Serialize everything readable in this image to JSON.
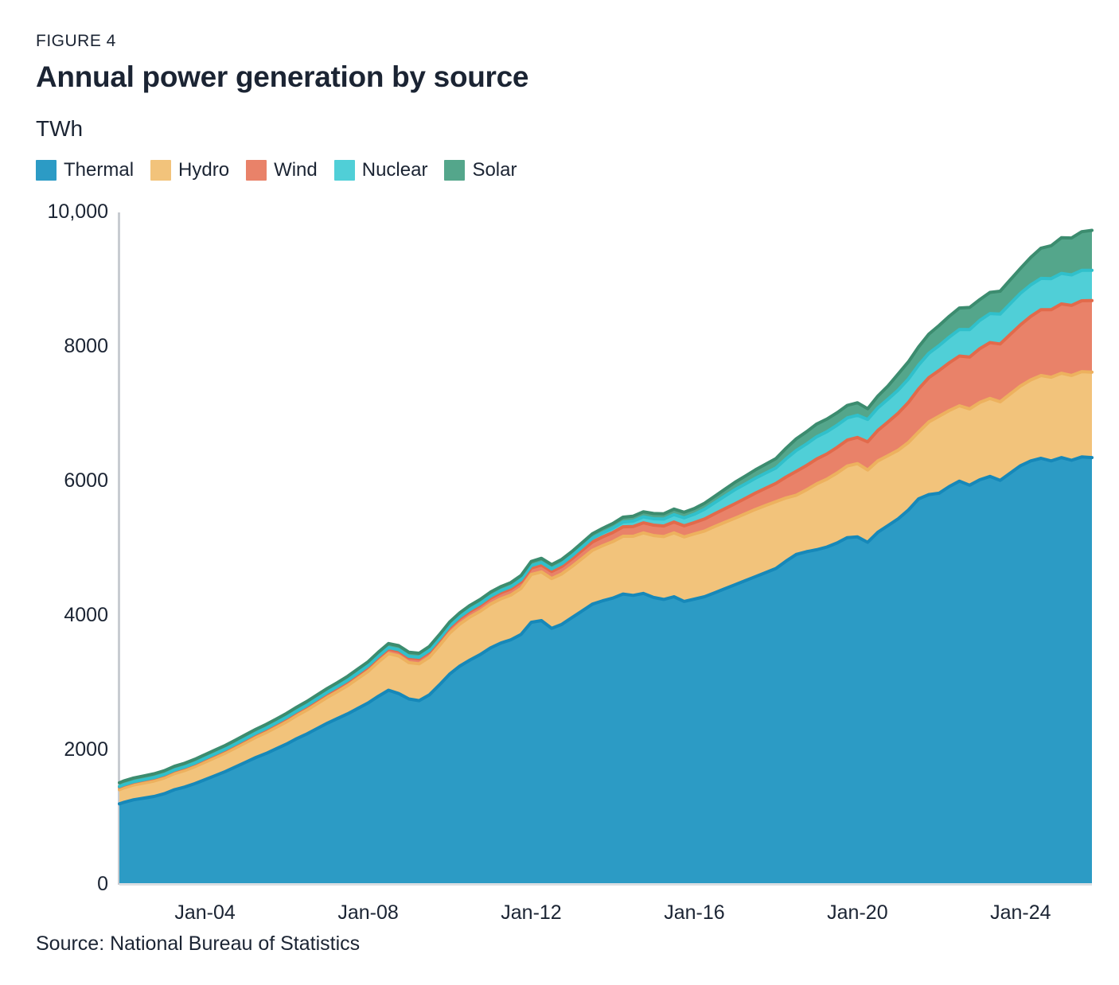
{
  "figure": {
    "label": "FIGURE 4",
    "title": "Annual power generation by source",
    "unit_label": "TWh",
    "source": "Source: National Bureau of Statistics"
  },
  "colors": {
    "text": "#1b2433",
    "y_axis_line": "#c8ccd1",
    "baseline": "#dbdee2"
  },
  "chart_data": {
    "type": "area",
    "stacked": true,
    "title": "Annual power generation by source",
    "ylabel": "TWh",
    "grid": false,
    "legend_position": "top",
    "xlim": [
      2001.9,
      2025.75
    ],
    "ylim": [
      0,
      10000
    ],
    "yticks": [
      {
        "label": "0",
        "v": 0
      },
      {
        "label": "2000",
        "v": 2000
      },
      {
        "label": "4000",
        "v": 4000
      },
      {
        "label": "6000",
        "v": 6000
      },
      {
        "label": "8000",
        "v": 8000
      },
      {
        "label": "10,000",
        "v": 10000
      }
    ],
    "xticks": [
      {
        "label": "Jan-04",
        "t": 2004
      },
      {
        "label": "Jan-08",
        "t": 2008
      },
      {
        "label": "Jan-12",
        "t": 2012
      },
      {
        "label": "Jan-16",
        "t": 2016
      },
      {
        "label": "Jan-20",
        "t": 2020
      },
      {
        "label": "Jan-24",
        "t": 2024
      }
    ],
    "x": [
      2001.9,
      2002,
      2002.25,
      2002.5,
      2002.75,
      2003,
      2003.25,
      2003.5,
      2003.75,
      2004,
      2004.25,
      2004.5,
      2004.75,
      2005,
      2005.25,
      2005.5,
      2005.75,
      2006,
      2006.25,
      2006.5,
      2006.75,
      2007,
      2007.25,
      2007.5,
      2007.75,
      2008,
      2008.25,
      2008.5,
      2008.75,
      2009,
      2009.25,
      2009.5,
      2009.75,
      2010,
      2010.25,
      2010.5,
      2010.75,
      2011,
      2011.25,
      2011.5,
      2011.75,
      2012,
      2012.25,
      2012.5,
      2012.75,
      2013,
      2013.25,
      2013.5,
      2013.75,
      2014,
      2014.25,
      2014.5,
      2014.75,
      2015,
      2015.25,
      2015.5,
      2015.75,
      2016,
      2016.25,
      2016.5,
      2016.75,
      2017,
      2017.25,
      2017.5,
      2017.75,
      2018,
      2018.25,
      2018.5,
      2018.75,
      2019,
      2019.25,
      2019.5,
      2019.75,
      2020,
      2020.25,
      2020.5,
      2020.75,
      2021,
      2021.25,
      2021.5,
      2021.75,
      2022,
      2022.25,
      2022.5,
      2022.75,
      2023,
      2023.25,
      2023.5,
      2023.75,
      2024,
      2024.25,
      2024.5,
      2024.75,
      2025,
      2025.25,
      2025.5,
      2025.75
    ],
    "series": [
      {
        "name": "Thermal",
        "color": "#2C9BC5",
        "stroke": "#1688B9",
        "values": [
          1180,
          1200,
          1240,
          1265,
          1290,
          1330,
          1390,
          1430,
          1480,
          1540,
          1600,
          1660,
          1730,
          1800,
          1870,
          1930,
          2000,
          2070,
          2150,
          2220,
          2300,
          2380,
          2450,
          2520,
          2600,
          2680,
          2780,
          2870,
          2820,
          2740,
          2715,
          2800,
          2950,
          3110,
          3230,
          3320,
          3400,
          3500,
          3570,
          3620,
          3700,
          3880,
          3905,
          3790,
          3850,
          3950,
          4050,
          4150,
          4200,
          4240,
          4300,
          4280,
          4310,
          4250,
          4220,
          4260,
          4190,
          4225,
          4260,
          4320,
          4380,
          4440,
          4500,
          4560,
          4620,
          4680,
          4790,
          4890,
          4930,
          4960,
          5000,
          5060,
          5140,
          5150,
          5070,
          5220,
          5320,
          5420,
          5550,
          5716,
          5780,
          5800,
          5900,
          5980,
          5920,
          6000,
          6050,
          5990,
          6100,
          6210,
          6280,
          6320,
          6280,
          6330,
          6290,
          6340,
          6330
        ]
      },
      {
        "name": "Hydro",
        "color": "#F2C37B",
        "stroke": "#EDB15E",
        "values": [
          210,
          215,
          220,
          225,
          230,
          235,
          240,
          245,
          252,
          260,
          268,
          275,
          282,
          290,
          300,
          310,
          320,
          330,
          342,
          355,
          370,
          385,
          400,
          420,
          445,
          470,
          510,
          545,
          560,
          540,
          548,
          560,
          585,
          610,
          625,
          640,
          645,
          650,
          658,
          665,
          685,
          710,
          725,
          740,
          750,
          760,
          780,
          800,
          820,
          840,
          860,
          880,
          900,
          920,
          935,
          950,
          960,
          970,
          978,
          985,
          988,
          990,
          995,
          1000,
          998,
          995,
          940,
          880,
          920,
          980,
          1010,
          1040,
          1065,
          1090,
          1075,
          1060,
          1040,
          1020,
          1005,
          995,
          1080,
          1145,
          1130,
          1120,
          1135,
          1150,
          1160,
          1170,
          1178,
          1185,
          1205,
          1230,
          1245,
          1255,
          1262,
          1268,
          1270
        ]
      },
      {
        "name": "Wind",
        "color": "#E98269",
        "stroke": "#E26A4B",
        "values": [
          40,
          40,
          41,
          41,
          42,
          42,
          43,
          43,
          44,
          45,
          45,
          46,
          47,
          48,
          49,
          50,
          51,
          52,
          53,
          54,
          55,
          56,
          58,
          60,
          62,
          64,
          66,
          68,
          70,
          72,
          74,
          76,
          78,
          80,
          82,
          84,
          86,
          88,
          90,
          92,
          95,
          98,
          102,
          106,
          110,
          115,
          120,
          125,
          130,
          135,
          140,
          145,
          150,
          155,
          158,
          162,
          165,
          168,
          178,
          190,
          202,
          215,
          228,
          242,
          256,
          270,
          312,
          355,
          362,
          370,
          375,
          382,
          386,
          390,
          420,
          455,
          500,
          550,
          595,
          640,
          660,
          680,
          710,
          740,
          770,
          800,
          830,
          860,
          885,
          910,
          945,
          980,
          1005,
          1030,
          1042,
          1055,
          1065
        ]
      },
      {
        "name": "Nuclear",
        "color": "#50CFD7",
        "stroke": "#30C0CB",
        "values": [
          8,
          8,
          8,
          9,
          9,
          9,
          10,
          10,
          10,
          11,
          11,
          12,
          12,
          13,
          13,
          14,
          14,
          15,
          15,
          16,
          17,
          17,
          18,
          18,
          19,
          20,
          20,
          21,
          22,
          22,
          23,
          23,
          24,
          25,
          26,
          27,
          28,
          30,
          31,
          32,
          34,
          35,
          37,
          39,
          42,
          45,
          50,
          55,
          60,
          65,
          72,
          80,
          88,
          95,
          102,
          110,
          118,
          125,
          145,
          165,
          188,
          210,
          215,
          222,
          226,
          230,
          270,
          310,
          320,
          330,
          330,
          330,
          330,
          330,
          332,
          335,
          340,
          345,
          350,
          355,
          362,
          370,
          382,
          395,
          408,
          420,
          432,
          445,
          458,
          470,
          468,
          465,
          462,
          455,
          453,
          452,
          450
        ]
      },
      {
        "name": "Solar",
        "color": "#54A68B",
        "stroke": "#3C8C6F",
        "values": [
          55,
          55,
          55,
          55,
          56,
          56,
          56,
          56,
          57,
          57,
          57,
          57,
          58,
          58,
          58,
          58,
          58,
          58,
          59,
          59,
          59,
          59,
          59,
          60,
          60,
          60,
          60,
          60,
          60,
          60,
          60,
          60,
          60,
          60,
          60,
          61,
          61,
          61,
          61,
          62,
          62,
          62,
          63,
          63,
          64,
          64,
          65,
          66,
          68,
          70,
          72,
          74,
          76,
          78,
          80,
          82,
          84,
          85,
          90,
          95,
          102,
          110,
          118,
          125,
          132,
          140,
          158,
          175,
          182,
          190,
          188,
          186,
          185,
          185,
          160,
          175,
          195,
          240,
          255,
          270,
          285,
          300,
          310,
          320,
          330,
          310,
          315,
          340,
          355,
          370,
          410,
          450,
          490,
          530,
          550,
          575,
          595
        ]
      }
    ]
  }
}
